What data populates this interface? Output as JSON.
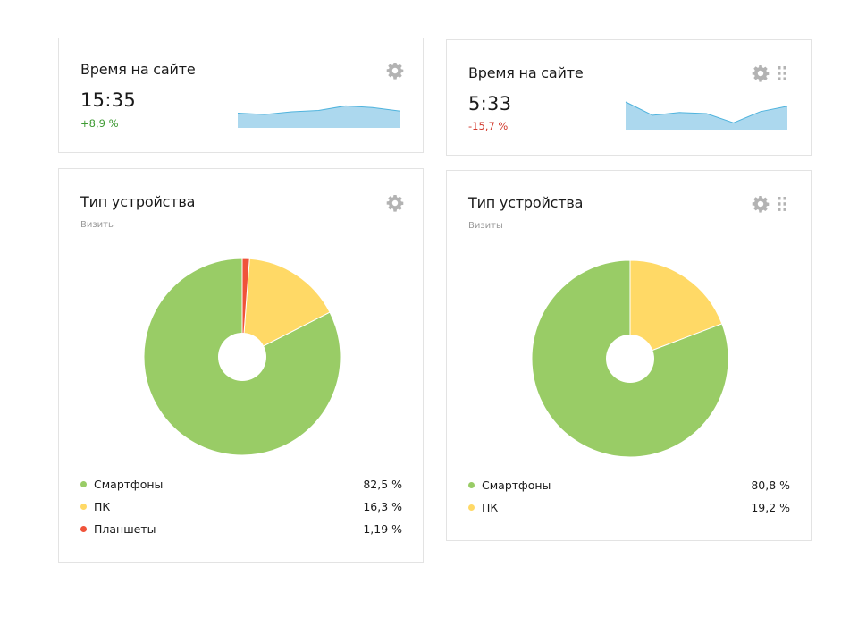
{
  "time_widgets": [
    {
      "title": "Время на сайте",
      "value": "15:35",
      "delta": "+8,9 %",
      "trend": "up",
      "sparkline": [
        0.55,
        0.5,
        0.6,
        0.65,
        0.82,
        0.76,
        0.63
      ]
    },
    {
      "title": "Время на сайте",
      "value": "5:33",
      "delta": "-15,7 %",
      "trend": "down",
      "sparkline": [
        1.0,
        0.52,
        0.62,
        0.58,
        0.25,
        0.65,
        0.85
      ]
    }
  ],
  "device_widgets": [
    {
      "title": "Тип устройства",
      "subtitle": "Визиты",
      "chart_data": {
        "type": "pie",
        "title": "Тип устройства",
        "series_name": "Визиты",
        "categories": [
          "Смартфоны",
          "ПК",
          "Планшеты"
        ],
        "values": [
          82.5,
          16.3,
          1.19
        ],
        "colors": [
          "#99cc66",
          "#ffd966",
          "#f0533a"
        ]
      },
      "legend": [
        {
          "label": "Смартфоны",
          "value": "82,5 %"
        },
        {
          "label": "ПК",
          "value": "16,3 %"
        },
        {
          "label": "Планшеты",
          "value": "1,19 %"
        }
      ]
    },
    {
      "title": "Тип устройства",
      "subtitle": "Визиты",
      "chart_data": {
        "type": "pie",
        "title": "Тип устройства",
        "series_name": "Визиты",
        "categories": [
          "Смартфоны",
          "ПК"
        ],
        "values": [
          80.8,
          19.2
        ],
        "colors": [
          "#99cc66",
          "#ffd966"
        ]
      },
      "legend": [
        {
          "label": "Смартфоны",
          "value": "80,8 %"
        },
        {
          "label": "ПК",
          "value": "19,2 %"
        }
      ]
    }
  ],
  "colors": {
    "sparkline_fill": "#acd8ee",
    "sparkline_line": "#4fb3dd",
    "icon_gray": "#b3b3b3",
    "positive": "#3f9b34",
    "negative": "#d23b2f"
  }
}
